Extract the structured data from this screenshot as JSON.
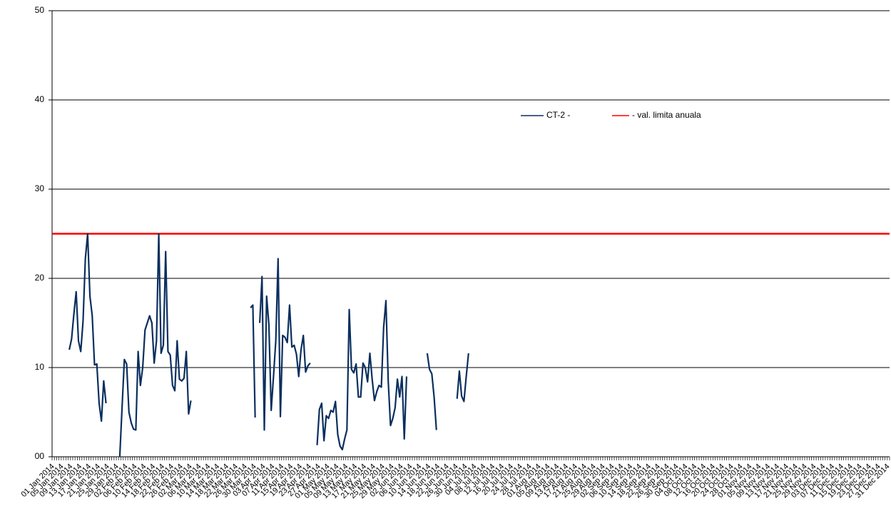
{
  "chart_data": {
    "type": "line",
    "categories": [
      "01 Jan 2014",
      null,
      null,
      null,
      "05 Jan 2014",
      null,
      null,
      null,
      "09 Jan 2014",
      null,
      null,
      null,
      "13 Jan 2014",
      null,
      null,
      null,
      "17 Jan 2014",
      null,
      null,
      null,
      "21 Jan 2014",
      null,
      null,
      null,
      "25 Jan 2014",
      null,
      null,
      null,
      "29 Jan 2014",
      null,
      null,
      null,
      "02 Feb 2014",
      null,
      null,
      null,
      "06 Feb 2014",
      null,
      null,
      null,
      "10 Feb 2014",
      null,
      null,
      null,
      "14 Feb 2014",
      null,
      null,
      null,
      "18 Feb 2014",
      null,
      null,
      null,
      "22 Feb 2014",
      null,
      null,
      null,
      "26 Feb 2014",
      null,
      null,
      null,
      "02 Mar 2014",
      null,
      null,
      null,
      "06 Mar 2014",
      null,
      null,
      null,
      "10 Mar 2014",
      null,
      null,
      null,
      "14 Mar 2014",
      null,
      null,
      null,
      "18 Mar 2014",
      null,
      null,
      null,
      "22 Mar 2014",
      null,
      null,
      null,
      "26 Mar 2014",
      null,
      null,
      null,
      "30 Mar 2014",
      null,
      null,
      null,
      "03 Apr 2014",
      null,
      null,
      null,
      "07 Apr 2014",
      null,
      null,
      null,
      "11 Apr 2014",
      null,
      null,
      null,
      "15 Apr 2014",
      null,
      null,
      null,
      "19 Apr 2014",
      null,
      null,
      null,
      "23 Apr 2014",
      null,
      null,
      null,
      "27 Apr 2014",
      null,
      null,
      null,
      "01 May 2014",
      null,
      null,
      null,
      "05 May 2014",
      null,
      null,
      null,
      "09 May 2014",
      null,
      null,
      null,
      "13 May 2014",
      null,
      null,
      null,
      "17 May 2014",
      null,
      null,
      null,
      "21 May 2014",
      null,
      null,
      null,
      "25 May 2014",
      null,
      null,
      null,
      "29 May 2014",
      null,
      null,
      null,
      "02 Jun 2014",
      null,
      null,
      null,
      "06 Jun 2014",
      null,
      null,
      null,
      "10 Jun 2014",
      null,
      null,
      null,
      "14 Jun 2014",
      null,
      null,
      null,
      "18 Jun 2014",
      null,
      null,
      null,
      "22 Jun 2014",
      null,
      null,
      null,
      "26 Jun 2014",
      null,
      null,
      null,
      "30 Jun 2014",
      null,
      null,
      null,
      "04 Jul 2014",
      null,
      null,
      null,
      "08 Jul 2014",
      null,
      null,
      null,
      "12 Jul 2014",
      null,
      null,
      null,
      "16 Jul 2014",
      null,
      null,
      null,
      "20 Jul 2014",
      null,
      null,
      null,
      "24 Jul 2014",
      null,
      null,
      null,
      "28 Jul 2014",
      null,
      null,
      null,
      "01 Aug 2014",
      null,
      null,
      null,
      "05 Aug 2014",
      null,
      null,
      null,
      "09 Aug 2014",
      null,
      null,
      null,
      "13 Aug 2014",
      null,
      null,
      null,
      "17 Aug 2014",
      null,
      null,
      null,
      "21 Aug 2014",
      null,
      null,
      null,
      "25 Aug 2014",
      null,
      null,
      null,
      "29 Aug 2014",
      null,
      null,
      null,
      "02 Sep 2014",
      null,
      null,
      null,
      "06 Sep 2014",
      null,
      null,
      null,
      "10 Sep 2014",
      null,
      null,
      null,
      "14 Sep 2014",
      null,
      null,
      null,
      "18 Sep 2014",
      null,
      null,
      null,
      "22 Sep 2014",
      null,
      null,
      null,
      "26 Sep 2014",
      null,
      null,
      null,
      "30 Sep 2014",
      null,
      null,
      null,
      "04 Oct 2014",
      null,
      null,
      null,
      "08 Oct 2014",
      null,
      null,
      null,
      "12 Oct 2014",
      null,
      null,
      null,
      "16 Oct 2014",
      null,
      null,
      null,
      "20 Oct 2014",
      null,
      null,
      null,
      "24 Oct 2014",
      null,
      null,
      null,
      "28 Oct 2014",
      null,
      null,
      null,
      "01 Nov 2014",
      null,
      null,
      null,
      "05 Nov 2014",
      null,
      null,
      null,
      "09 Nov 2014",
      null,
      null,
      null,
      "13 Nov 2014",
      null,
      null,
      null,
      "17 Nov 2014",
      null,
      null,
      null,
      "21 Nov 2014",
      null,
      null,
      null,
      "25 Nov 2014",
      null,
      null,
      null,
      "29 Nov 2014",
      null,
      null,
      null,
      "03 Dec 2014",
      null,
      null,
      null,
      "07 Dec 2014",
      null,
      null,
      null,
      "11 Dec 2014",
      null,
      null,
      null,
      "15 Dec 2014",
      null,
      null,
      null,
      "19 Dec 2014",
      null,
      null,
      null,
      "23 Dec 2014",
      null,
      null,
      null,
      "27 Dec 2014",
      null,
      null,
      null,
      "31 Dec 2014"
    ],
    "series": [
      {
        "name": "CT-2 -",
        "color": "#0b2f5e",
        "values": [
          null,
          null,
          null,
          null,
          null,
          null,
          null,
          12,
          13.2,
          16,
          18.5,
          13,
          11.8,
          15.2,
          22.2,
          25,
          18,
          15.8,
          10.3,
          10.4,
          6,
          4,
          8.5,
          6,
          null,
          null,
          null,
          null,
          null,
          0,
          5.5,
          10.9,
          10.4,
          5,
          3.8,
          3.1,
          3,
          11.8,
          8,
          10,
          14.2,
          15,
          15.8,
          15,
          10.5,
          13,
          25,
          11.6,
          12.5,
          23,
          11.8,
          11.4,
          8,
          7.4,
          13,
          8.7,
          8.5,
          8.8,
          11.8,
          4.8,
          6.3,
          null,
          null,
          null,
          null,
          null,
          null,
          null,
          null,
          null,
          null,
          null,
          null,
          null,
          null,
          null,
          null,
          null,
          null,
          null,
          null,
          null,
          null,
          null,
          null,
          null,
          16.7,
          17,
          4.4,
          null,
          15,
          20.2,
          3,
          18,
          14.8,
          5.2,
          9,
          13,
          22.2,
          4.5,
          13.6,
          13.4,
          12.8,
          17,
          12.3,
          12.5,
          11.5,
          9,
          12,
          13.6,
          9.5,
          10.2,
          10.5,
          null,
          null,
          1.3,
          5.3,
          6,
          1.8,
          4.6,
          4.3,
          5.2,
          5,
          6.2,
          2.5,
          1.2,
          0.8,
          2,
          3,
          16.5,
          9.8,
          9.4,
          10.4,
          6.7,
          6.7,
          10.5,
          10,
          8.4,
          11.6,
          8.7,
          6.3,
          7.3,
          8,
          7.8,
          14.5,
          17.5,
          8.5,
          3.5,
          4.3,
          5.5,
          8.7,
          6.7,
          9,
          2,
          9,
          null,
          null,
          null,
          null,
          null,
          null,
          null,
          null,
          11.6,
          9.8,
          9.3,
          6.7,
          3,
          null,
          null,
          null,
          null,
          null,
          null,
          null,
          null,
          6.5,
          9.6,
          6.8,
          6.2,
          9,
          11.6,
          null,
          null,
          null,
          null,
          null,
          null,
          null,
          null,
          null,
          null,
          null,
          null,
          null,
          null,
          null,
          null,
          null,
          null,
          null,
          null,
          null,
          null,
          null,
          null,
          null,
          null,
          null,
          null,
          null,
          null,
          null,
          null,
          null,
          null,
          null,
          null,
          null,
          null,
          null,
          null,
          null,
          null,
          null,
          null,
          null,
          null,
          null,
          null,
          null,
          null,
          null,
          null,
          null,
          null,
          null,
          null,
          null,
          null,
          null,
          null,
          null,
          null,
          null,
          null,
          null,
          null,
          null,
          null,
          null,
          null,
          null,
          null,
          null,
          null,
          null,
          null,
          null,
          null,
          null,
          null,
          null,
          null,
          null,
          null,
          null,
          null,
          null,
          null,
          null,
          null,
          null,
          null,
          null,
          null,
          null,
          null,
          null,
          null,
          null,
          null,
          null,
          null,
          null,
          null,
          null,
          null,
          null,
          null,
          null,
          null,
          null,
          null,
          null,
          null,
          null,
          null,
          null,
          null,
          null,
          null,
          null,
          null,
          null,
          null,
          null,
          null,
          null,
          null,
          null,
          null,
          null,
          null,
          null,
          null,
          null,
          null,
          null,
          null,
          null,
          null,
          null,
          null,
          null,
          null,
          null,
          null,
          null,
          null,
          null,
          null,
          null,
          null,
          null,
          null,
          null,
          null,
          null,
          null,
          null,
          null,
          null,
          null,
          null,
          null,
          null,
          null,
          null,
          null,
          null,
          null,
          null,
          null,
          null,
          null,
          null,
          null,
          null,
          null,
          null,
          null,
          null,
          null,
          null
        ]
      }
    ],
    "hlines": [
      {
        "name": "- val. limita anuala",
        "value": 25,
        "color": "#ff0000"
      }
    ],
    "ylim": [
      0,
      50
    ],
    "yticks": [
      {
        "value": 0,
        "label": "00"
      },
      10,
      20,
      30,
      40,
      50
    ],
    "grid": true
  }
}
